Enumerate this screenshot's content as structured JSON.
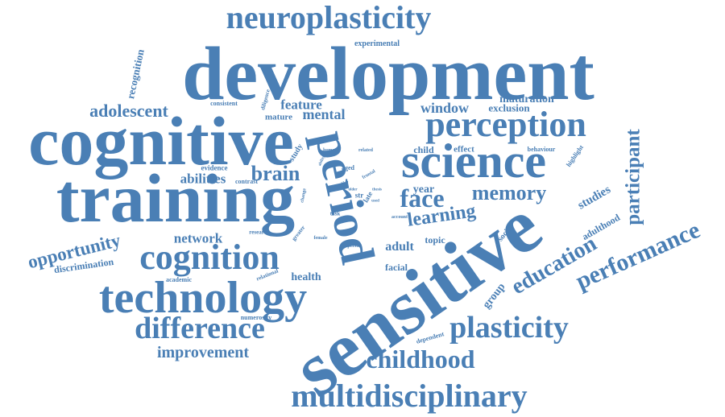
{
  "palette": {
    "word": "#4a7fb5",
    "background": "#ffffff"
  },
  "words": [
    {
      "text": "development"
    },
    {
      "text": "cognitive"
    },
    {
      "text": "training"
    },
    {
      "text": "sensitive"
    },
    {
      "text": "period"
    },
    {
      "text": "science"
    },
    {
      "text": "neuroplasticity"
    },
    {
      "text": "perception"
    },
    {
      "text": "technology"
    },
    {
      "text": "cognition"
    },
    {
      "text": "multidisciplinary"
    },
    {
      "text": "difference"
    },
    {
      "text": "plasticity"
    },
    {
      "text": "childhood"
    },
    {
      "text": "performance"
    },
    {
      "text": "education"
    },
    {
      "text": "memory"
    },
    {
      "text": "participant"
    },
    {
      "text": "improvement"
    },
    {
      "text": "opportunity"
    },
    {
      "text": "learning"
    },
    {
      "text": "adolescent"
    },
    {
      "text": "face"
    },
    {
      "text": "brain"
    },
    {
      "text": "mental"
    },
    {
      "text": "feature"
    },
    {
      "text": "abilities"
    },
    {
      "text": "network"
    },
    {
      "text": "adult"
    },
    {
      "text": "health"
    },
    {
      "text": "window"
    },
    {
      "text": "maturation"
    },
    {
      "text": "exclusion"
    },
    {
      "text": "studies"
    },
    {
      "text": "adulthood"
    },
    {
      "text": "group"
    },
    {
      "text": "year"
    },
    {
      "text": "recognition"
    },
    {
      "text": "discrimination"
    },
    {
      "text": "facial"
    },
    {
      "text": "topic"
    },
    {
      "text": "child"
    },
    {
      "text": "effect"
    },
    {
      "text": "social"
    },
    {
      "text": "mature"
    },
    {
      "text": "experimental"
    },
    {
      "text": "consistent"
    },
    {
      "text": "diligence"
    },
    {
      "text": "behaviour"
    },
    {
      "text": "highlight"
    },
    {
      "text": "study"
    },
    {
      "text": "evidence"
    },
    {
      "text": "contrast"
    },
    {
      "text": "numerosity"
    },
    {
      "text": "academic"
    },
    {
      "text": "relational"
    },
    {
      "text": "dependent"
    },
    {
      "text": "research"
    },
    {
      "text": "greater"
    },
    {
      "text": "female"
    },
    {
      "text": "person"
    },
    {
      "text": "account"
    },
    {
      "text": "task"
    },
    {
      "text": "human"
    },
    {
      "text": "related"
    },
    {
      "text": "aged"
    },
    {
      "text": "frontal"
    },
    {
      "text": "late"
    },
    {
      "text": "older"
    },
    {
      "text": "change"
    },
    {
      "text": "str"
    },
    {
      "text": "ability"
    },
    {
      "text": "thesis"
    },
    {
      "text": "used"
    },
    {
      "text": "skill"
    }
  ]
}
